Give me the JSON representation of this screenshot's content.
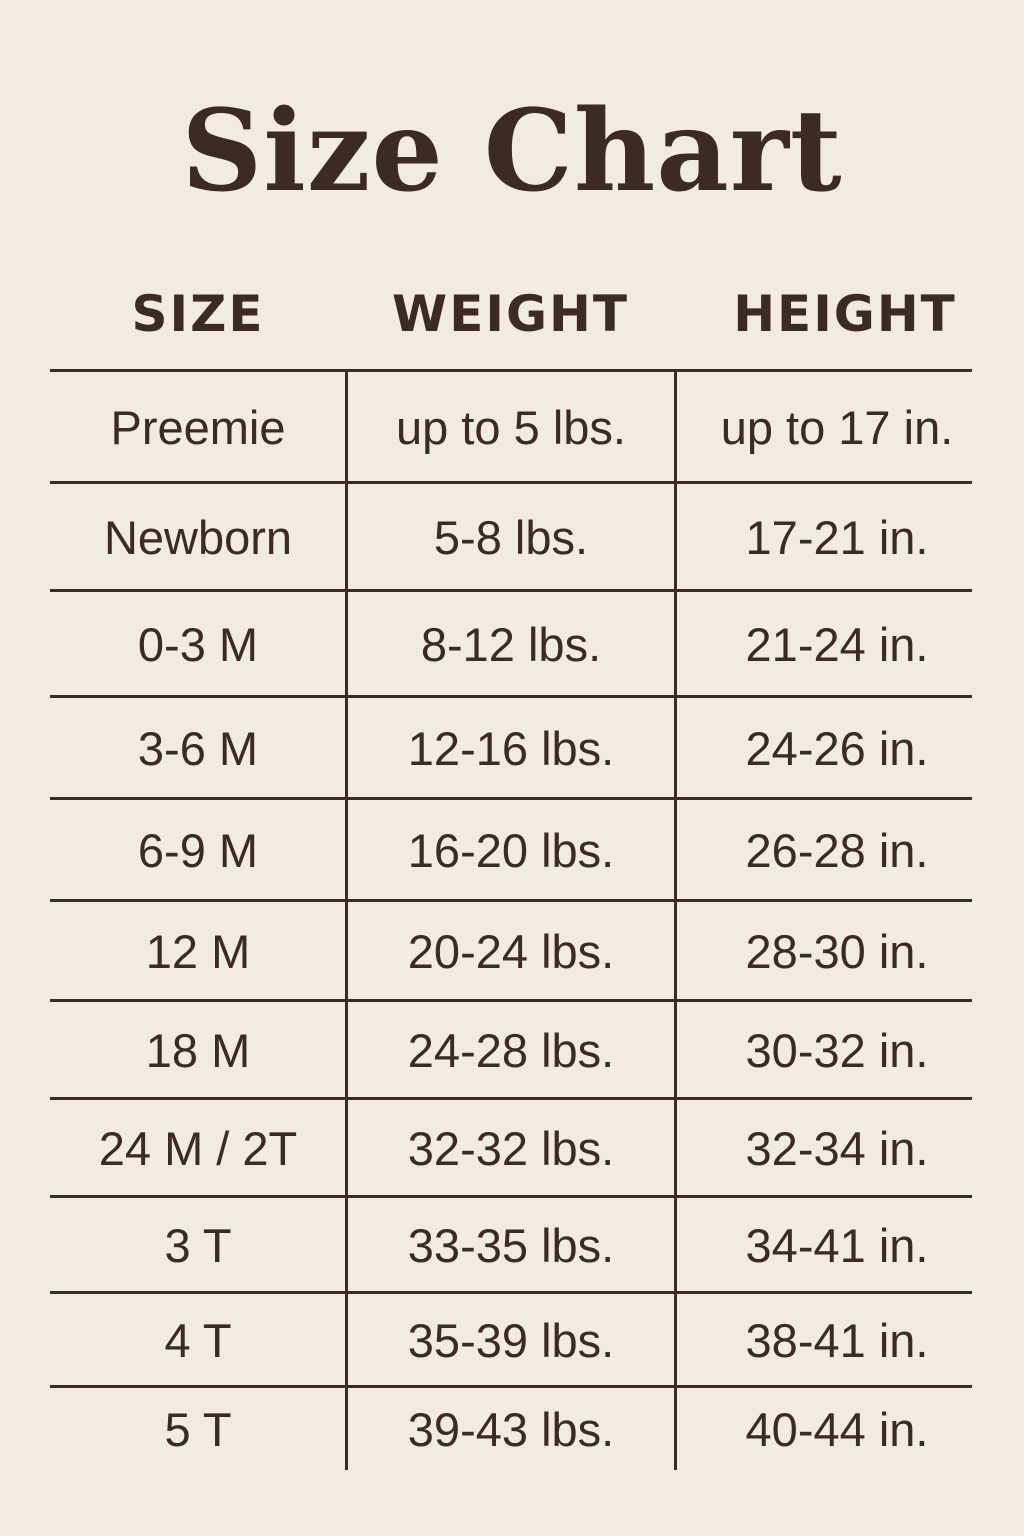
{
  "title": "Size Chart",
  "columns": [
    "SIZE",
    "WEIGHT",
    "HEIGHT"
  ],
  "rows": [
    [
      "Preemie",
      "up to 5 lbs.",
      "up to 17 in."
    ],
    [
      "Newborn",
      "5-8 lbs.",
      "17-21 in."
    ],
    [
      "0-3 M",
      "8-12 lbs.",
      "21-24 in."
    ],
    [
      "3-6 M",
      "12-16 lbs.",
      "24-26 in."
    ],
    [
      "6-9 M",
      "16-20 lbs.",
      "26-28 in."
    ],
    [
      "12 M",
      "20-24 lbs.",
      "28-30 in."
    ],
    [
      "18 M",
      "24-28 lbs.",
      "30-32 in."
    ],
    [
      "24 M / 2T",
      "32-32 lbs.",
      "32-34 in."
    ],
    [
      "3 T",
      "33-35 lbs.",
      "34-41 in."
    ],
    [
      "4 T",
      "35-39 lbs.",
      "38-41 in."
    ],
    [
      "5 T",
      "39-43 lbs.",
      "40-44 in."
    ]
  ],
  "colors": {
    "background": "#f2ebe0",
    "text": "#3b2b21"
  }
}
